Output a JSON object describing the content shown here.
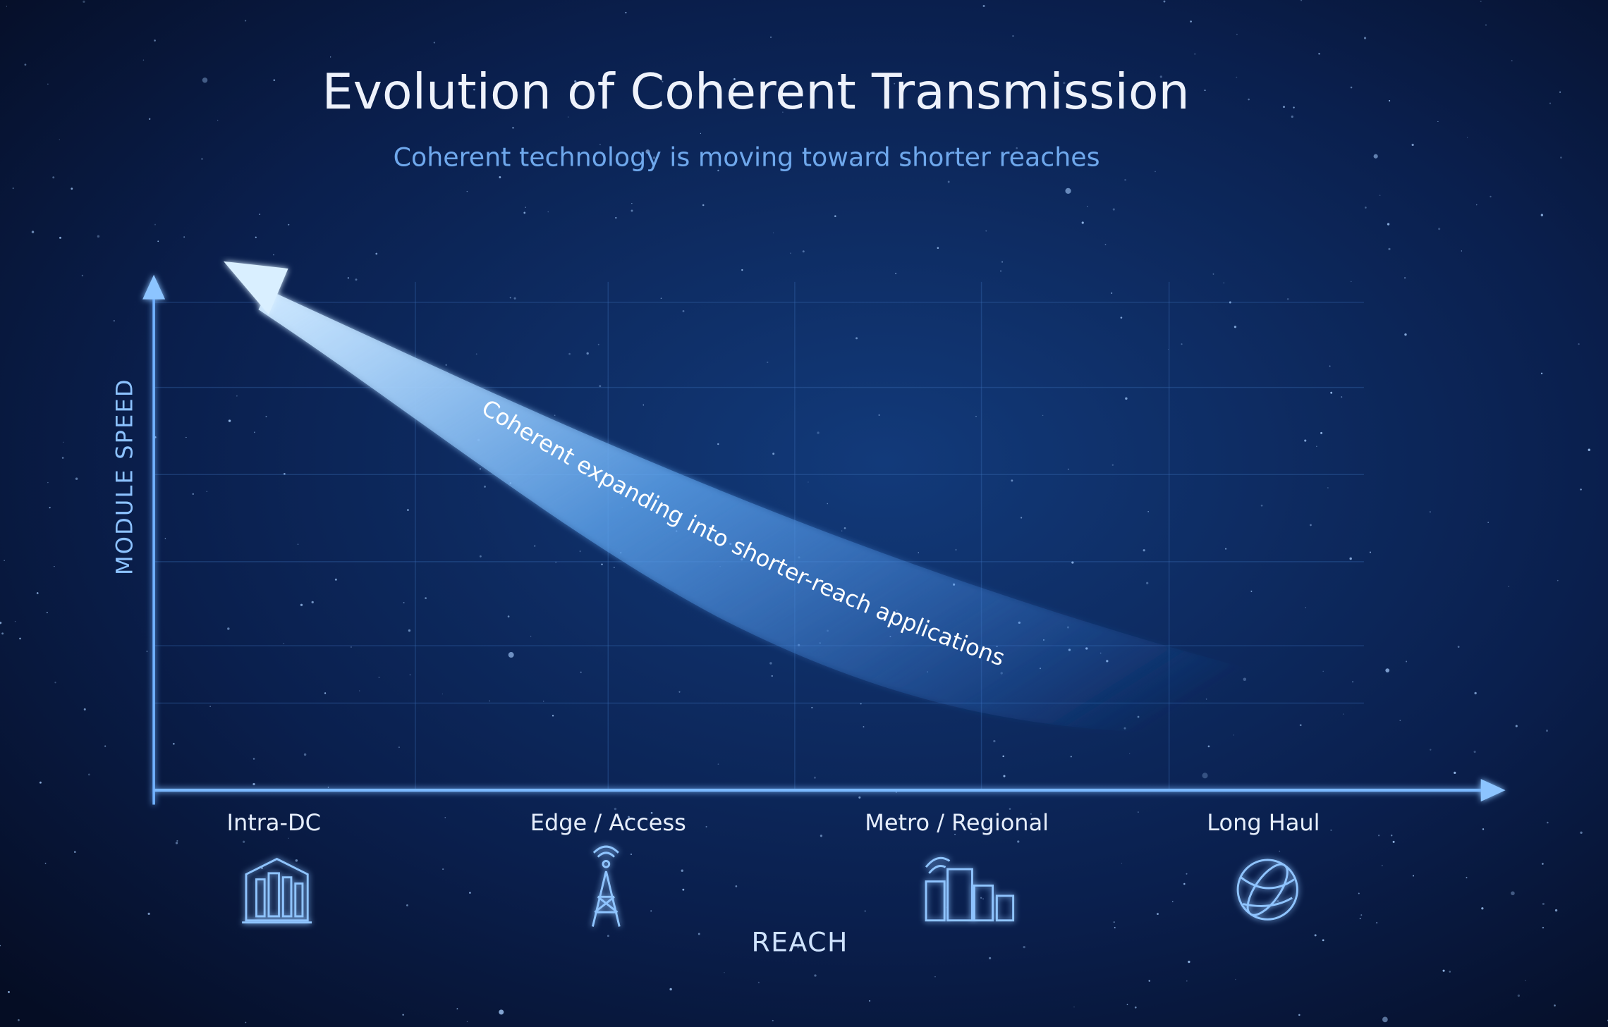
{
  "header": {
    "title": "Evolution of Coherent Transmission",
    "subtitle": "Coherent technology is moving toward shorter reaches"
  },
  "diagram": {
    "y_axis_label": "MODULE SPEED",
    "x_axis_label": "REACH",
    "arrow_label": "Coherent expanding into shorter-reach applications",
    "categories": [
      "Intra-DC",
      "Edge / Access",
      "Metro / Regional",
      "Long Haul"
    ]
  }
}
